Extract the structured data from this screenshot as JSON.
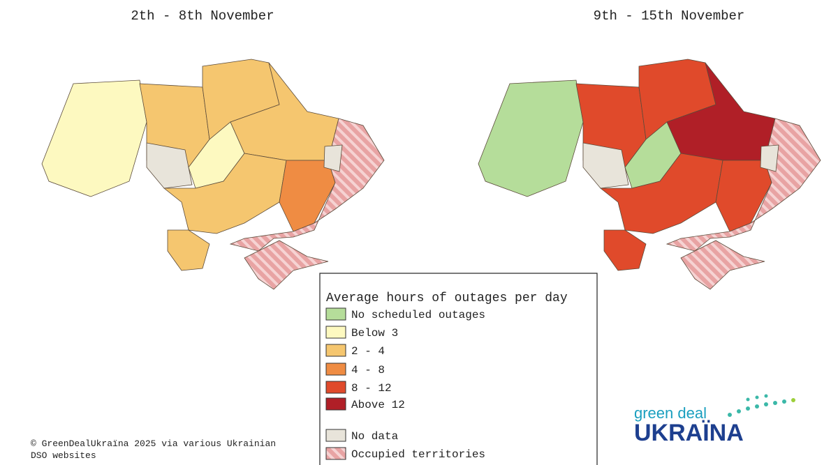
{
  "maps": [
    {
      "title": "2th - 8th November"
    },
    {
      "title": "9th - 15th November"
    }
  ],
  "legend": {
    "title": "Average hours of outages per day",
    "items": [
      {
        "label": "No scheduled outages",
        "color": "#b5dd9a"
      },
      {
        "label": "Below 3",
        "color": "#fdf9c0"
      },
      {
        "label": "2 - 4",
        "color": "#f5c66f"
      },
      {
        "label": "4 - 8",
        "color": "#ef8c43"
      },
      {
        "label": "8 - 12",
        "color": "#e04a2b"
      },
      {
        "label": "Above 12",
        "color": "#b01f27"
      },
      {
        "label": "No data",
        "color": "#e8e4da"
      },
      {
        "label": "Occupied territories",
        "color": "#e8a3a3"
      }
    ]
  },
  "credit": "© GreenDealUkraïna 2025 via various Ukrainian DSO websites",
  "logo": {
    "top": "green deal",
    "bottom": "UKRAÏNA"
  }
}
